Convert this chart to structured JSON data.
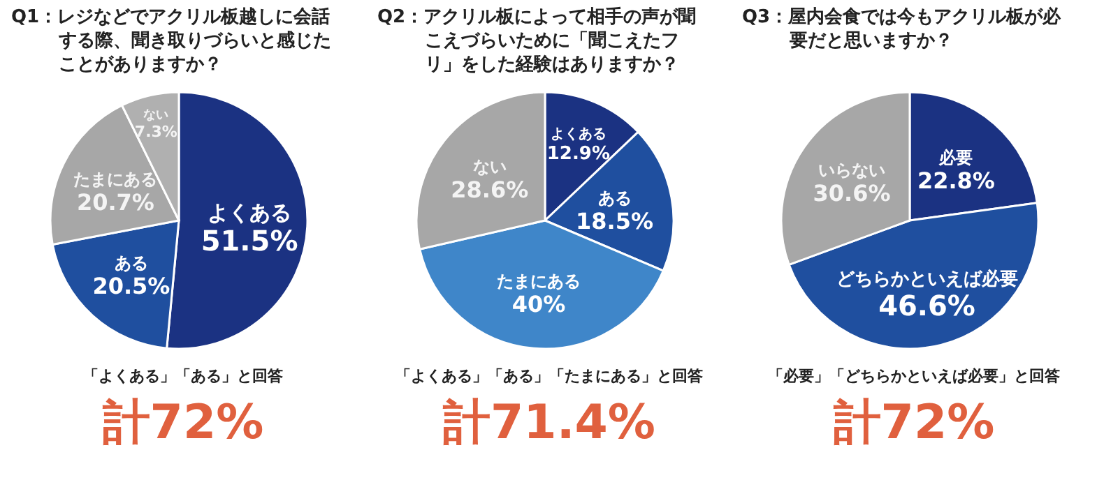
{
  "chart_data": [
    {
      "type": "pie",
      "title": "Q1：レジなどでアクリル板越しに会話する際、聞き取りづらいと感じたことがありますか？",
      "categories": [
        "よくある",
        "ある",
        "たまにある",
        "ない"
      ],
      "values": [
        51.5,
        20.5,
        20.7,
        7.3
      ],
      "value_labels": [
        "51.5%",
        "20.5%",
        "20.7%",
        "7.3%"
      ],
      "colors": [
        "#1b3282",
        "#1f4f9f",
        "#a7a7a7",
        "#b0b0b0"
      ],
      "annotations": [
        "「よくある」「ある」と回答",
        "計72%"
      ]
    },
    {
      "type": "pie",
      "title": "Q2：アクリル板によって相手の声が聞こえづらいために「聞こえたフリ」をした経験はありますか？",
      "categories": [
        "よくある",
        "ある",
        "たまにある",
        "ない"
      ],
      "values": [
        12.9,
        18.5,
        40,
        28.6
      ],
      "value_labels": [
        "12.9%",
        "18.5%",
        "40%",
        "28.6%"
      ],
      "colors": [
        "#1b3282",
        "#1f4f9f",
        "#3f86c9",
        "#a7a7a7"
      ],
      "annotations": [
        "「よくある」「ある」「たまにある」と回答",
        "計71.4%"
      ]
    },
    {
      "type": "pie",
      "title": "Q3：屋内会食では今もアクリル板が必要だと思いますか？",
      "categories": [
        "必要",
        "どちらかといえば必要",
        "いらない"
      ],
      "values": [
        22.8,
        46.6,
        30.6
      ],
      "value_labels": [
        "22.8%",
        "46.6%",
        "30.6%"
      ],
      "colors": [
        "#1b3282",
        "#1f4f9f",
        "#a7a7a7"
      ],
      "annotations": [
        "「必要」「どちらかといえば必要」と回答",
        "計72%"
      ]
    }
  ]
}
